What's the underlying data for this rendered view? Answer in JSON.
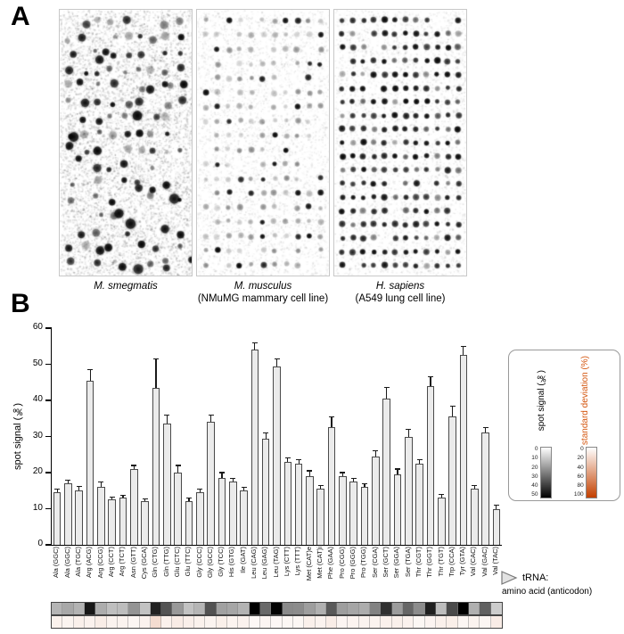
{
  "figure": {
    "panel_a_label": "A",
    "panel_b_label": "B"
  },
  "panel_a": {
    "images": [
      {
        "name": "M. smegmatis",
        "detail": ""
      },
      {
        "name": "M. musculus",
        "detail": "(NMuMG mammary cell line)"
      },
      {
        "name": "H. sapiens",
        "detail": "(A549 lung cell line)"
      }
    ]
  },
  "chart_data": {
    "type": "bar",
    "title": "",
    "ylabel": "spot signal (‰)",
    "xlabel": "tRNA: amino acid (anticodon)",
    "ylim": [
      0,
      60
    ],
    "yticks": [
      0,
      10,
      20,
      30,
      40,
      50,
      60
    ],
    "grid": false,
    "bar_color": "#ebebeb",
    "bar_border_color": "#4a4a4a",
    "categories": [
      "Ala (GGC)",
      "Ala (GGC)",
      "Ala (TGC)",
      "Arg (ACG)",
      "Arg (CCG)",
      "Arg (CCT)",
      "Arg (TCT)",
      "Asn (GTT)",
      "Cys (GCA)",
      "Gln (CTG)",
      "Gln (TTG)",
      "Glu (CTC)",
      "Glu (TTC)",
      "Gly (CCC)",
      "Gly (GCC)",
      "Gly (TCC)",
      "His (GTG)",
      "Ile (GAT)",
      "Leu (CAG)",
      "Leu (GAG)",
      "Leu (TAG)",
      "Lys (CTT)",
      "Lys (TTT)",
      "Met (CAT)e",
      "Met (CAT)i",
      "Phe (GAA)",
      "Pro (CGG)",
      "Pro (GGG)",
      "Pro (TGG)",
      "Ser (CGA)",
      "Ser (GCT)",
      "Ser (GGA)",
      "Ser (TGA)",
      "Thr (CGT)",
      "Thr (GGT)",
      "Thr (TGT)",
      "Trp (CCA)",
      "Tyr (GTA)",
      "Val (CAC)",
      "Val (GAC)",
      "Val (TAC)"
    ],
    "values": [
      14.5,
      17,
      15,
      45.5,
      16,
      12.5,
      13,
      21,
      12,
      43.5,
      33.5,
      20,
      12,
      14.5,
      34,
      18.5,
      17.5,
      15,
      54,
      29.5,
      49.5,
      23,
      22.5,
      19,
      15.5,
      32.5,
      19,
      17.5,
      16,
      24.5,
      40.5,
      19.5,
      30,
      22.5,
      44,
      13,
      35.5,
      52.5,
      15.5,
      31,
      10
    ],
    "errors": [
      1,
      1,
      1.2,
      3,
      1.5,
      0.8,
      0.8,
      1,
      0.8,
      8,
      2.5,
      2,
      1,
      1,
      2,
      1.5,
      1,
      1,
      2,
      1.5,
      2,
      1,
      1,
      1.5,
      1,
      3,
      1,
      1,
      1,
      1.5,
      3,
      1.5,
      2,
      1,
      2.5,
      1,
      3,
      2.5,
      1,
      1.5,
      1
    ]
  },
  "legend": {
    "spot_signal": {
      "label": "spot signal (‰)",
      "ticks": [
        0,
        10,
        20,
        30,
        40,
        50
      ],
      "scale": [
        "#ffffff",
        "#000000"
      ]
    },
    "standard_deviation": {
      "label": "standard deviation (%)",
      "ticks": [
        0,
        20,
        40,
        60,
        80,
        100
      ],
      "scale": [
        "#ffffff",
        "#c34000"
      ],
      "label_color": "#d4560f"
    }
  },
  "heatmap": {
    "rows": [
      "spot signal (‰)",
      "standard deviation (%)"
    ],
    "spot_signal_range": [
      0,
      50
    ],
    "sd_range": [
      0,
      100
    ]
  },
  "annotation": {
    "line1": "tRNA:",
    "line2": "amino acid (anticodon)"
  }
}
